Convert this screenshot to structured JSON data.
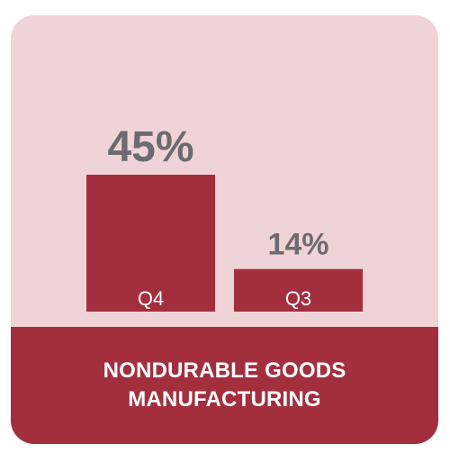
{
  "chart_data": {
    "type": "bar",
    "categories": [
      "Q4",
      "Q3"
    ],
    "values": [
      45,
      14
    ],
    "value_labels": [
      "45%",
      "14%"
    ],
    "ylim": [
      0,
      45
    ]
  },
  "footer": {
    "line1": "NONDURABLE GOODS",
    "line2": "MANUFACTURING"
  },
  "colors": {
    "background": "#f0d3d6",
    "bar": "#a32f3e",
    "value_label": "#6b6b70",
    "category_label": "#ffffff"
  }
}
